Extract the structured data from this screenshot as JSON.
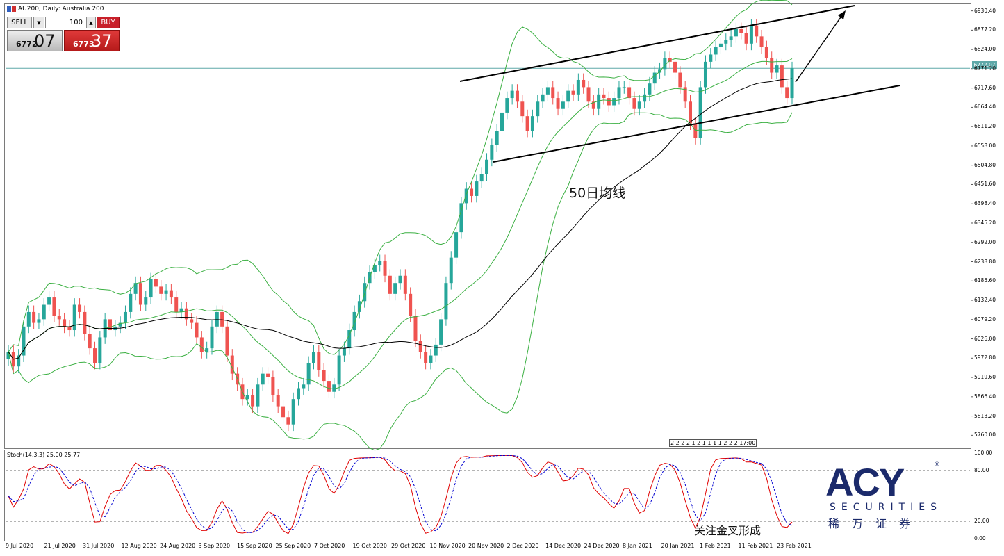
{
  "window": {
    "title": "AU200, Daily:  Australia 200"
  },
  "trade_panel": {
    "sell_label": "SELL",
    "buy_label": "BUY",
    "lot_value": "100",
    "sell_price_small": "6772",
    "sell_price_big": "07",
    "buy_price_small": "6773",
    "buy_price_big": "37"
  },
  "annotations": {
    "ma_label": "50日均线",
    "stoch_label": "关注金叉形成"
  },
  "indicator": {
    "label": "Stoch(14,3,3) 25.00 25.77"
  },
  "current_price_tag": "6772.07",
  "minor_tick_text": "2 2 2 2 1 2 1 1 1 1 2 2 2 17:00",
  "logo": {
    "brand": "ACY",
    "reg": "®",
    "sub": "SECURITIES",
    "cn": "稀万证券"
  },
  "colors": {
    "bull": "#26a69a",
    "bear": "#ef5350",
    "band": "#3cb043",
    "ma50": "#000000",
    "stoch_k": "#e00000",
    "stoch_d": "#0000d0",
    "hline": "#5fa8a8"
  },
  "chart_data": {
    "type": "candlestick",
    "symbol": "AU200",
    "timeframe": "Daily",
    "ylim": [
      5730,
      6945
    ],
    "y_ticks": [
      "6930.40",
      "6877.20",
      "6824.00",
      "6771.20",
      "6717.60",
      "6664.40",
      "6611.20",
      "6558.00",
      "6504.80",
      "6451.60",
      "6398.40",
      "6345.20",
      "6292.00",
      "6238.80",
      "6185.60",
      "6132.40",
      "6079.20",
      "6026.00",
      "5972.80",
      "5919.60",
      "5866.40",
      "5813.20",
      "5760.00"
    ],
    "x_labels": [
      "9 Jul 2020",
      "21 Jul 2020",
      "31 Jul 2020",
      "12 Aug 2020",
      "24 Aug 2020",
      "3 Sep 2020",
      "15 Sep 2020",
      "25 Sep 2020",
      "7 Oct 2020",
      "19 Oct 2020",
      "29 Oct 2020",
      "10 Nov 2020",
      "20 Nov 2020",
      "2 Dec 2020",
      "14 Dec 2020",
      "24 Dec 2020",
      "8 Jan 2021",
      "20 Jan 2021",
      "1 Feb 2021",
      "11 Feb 2021",
      "23 Feb 2021"
    ],
    "current_price": 6772.07,
    "close_series": [
      5990,
      5950,
      5980,
      6060,
      6100,
      6070,
      6080,
      6120,
      6140,
      6090,
      6080,
      6060,
      6050,
      6120,
      6100,
      6040,
      6000,
      5960,
      6030,
      6080,
      6050,
      6060,
      6070,
      6100,
      6150,
      6180,
      6120,
      6140,
      6190,
      6170,
      6150,
      6160,
      6140,
      6100,
      6110,
      6080,
      6070,
      6030,
      5990,
      6000,
      6060,
      6100,
      6060,
      5980,
      5930,
      5900,
      5860,
      5870,
      5840,
      5900,
      5930,
      5920,
      5870,
      5840,
      5810,
      5790,
      5860,
      5890,
      5900,
      5960,
      5990,
      5940,
      5910,
      5880,
      5900,
      5980,
      6000,
      6050,
      6100,
      6130,
      6180,
      6210,
      6230,
      6240,
      6200,
      6150,
      6180,
      6200,
      6150,
      6090,
      6020,
      5990,
      5960,
      5980,
      6010,
      6080,
      6180,
      6250,
      6320,
      6400,
      6440,
      6420,
      6460,
      6480,
      6520,
      6560,
      6600,
      6650,
      6690,
      6710,
      6680,
      6640,
      6600,
      6640,
      6680,
      6700,
      6720,
      6690,
      6660,
      6680,
      6710,
      6700,
      6740,
      6720,
      6680,
      6660,
      6700,
      6690,
      6670,
      6690,
      6720,
      6720,
      6690,
      6660,
      6680,
      6700,
      6730,
      6760,
      6770,
      6800,
      6790,
      6760,
      6720,
      6680,
      6620,
      6580,
      6720,
      6790,
      6810,
      6830,
      6840,
      6850,
      6860,
      6880,
      6870,
      6840,
      6890,
      6860,
      6830,
      6800,
      6760,
      6780,
      6720,
      6690,
      6772
    ],
    "stoch_ylim": [
      0,
      100
    ],
    "stoch_levels": [
      80,
      20
    ],
    "stoch_ticks": [
      "100.00",
      "80.00",
      "20.00",
      "0.00"
    ],
    "stoch_k_last": 25.0,
    "stoch_d_last": 25.77
  }
}
